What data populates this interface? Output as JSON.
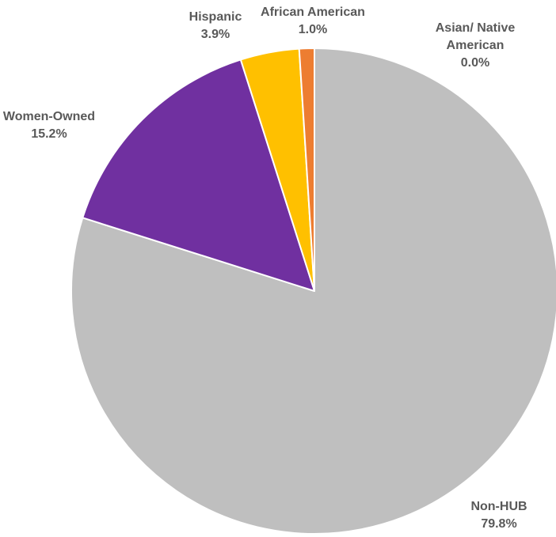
{
  "chart_data": {
    "type": "pie",
    "title": "",
    "start_angle_deg": 0,
    "direction": "clockwise",
    "slices": [
      {
        "label": "Non-HUB",
        "value": 79.8,
        "value_label": "79.8%",
        "color": "#BFBFBF"
      },
      {
        "label": "Women-Owned",
        "value": 15.2,
        "value_label": "15.2%",
        "color": "#7030A0"
      },
      {
        "label": "Hispanic",
        "value": 3.9,
        "value_label": "3.9%",
        "color": "#FFC000"
      },
      {
        "label": "African American",
        "value": 1.0,
        "value_label": "1.0%",
        "color": "#ED7D31"
      },
      {
        "label": "Asian/ Native American",
        "value": 0.0,
        "value_label": "0.0%",
        "color": "#4472C4"
      }
    ],
    "label_color": "#595959",
    "slice_border_color": "#FFFFFF"
  }
}
